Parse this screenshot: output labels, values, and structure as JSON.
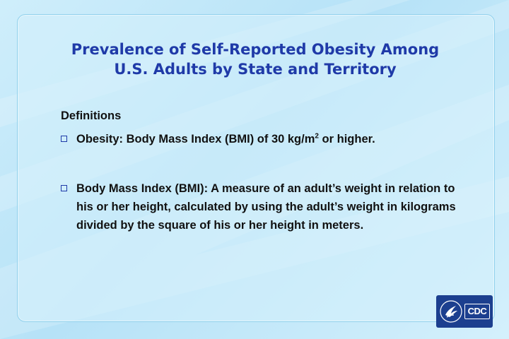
{
  "slide": {
    "title_line1": "Prevalence of Self-Reported Obesity Among",
    "title_line2": "U.S. Adults by State and Territory",
    "definitions_heading": "Definitions",
    "bullets": [
      {
        "text_before_sup": "Obesity: Body Mass Index (BMI) of 30 kg/m",
        "superscript": "2",
        "text_after_sup": " or higher."
      },
      {
        "text": "Body Mass Index (BMI): A measure of an adult’s weight in relation to his or her height, calculated by using the adult’s weight in kilograms divided by the square of his or her height in meters."
      }
    ]
  },
  "logo": {
    "text": "CDC",
    "seal_icon": "hhs-eagle-icon"
  },
  "colors": {
    "title": "#1f3aa8",
    "body_text": "#111111",
    "panel_border": "#8fd0ec",
    "logo_background": "#1c3f8f",
    "bullet_box": "#1f3aa8"
  }
}
